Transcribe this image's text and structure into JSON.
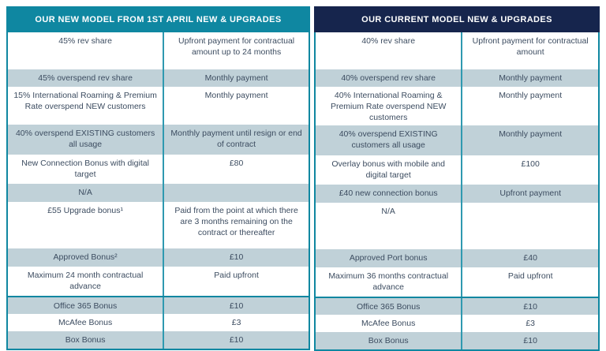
{
  "colors": {
    "teal_header": "#0F87A1",
    "navy_header": "#16254D",
    "row_alternate": "#C0D1D8",
    "cell_divider": "#2F99B0",
    "body_text": "#3C4C60"
  },
  "tables": [
    {
      "id": "new-model",
      "header": "OUR NEW MODEL FROM 1ST APRIL NEW & UPGRADES",
      "rows": [
        {
          "desc": "45% rev share",
          "payment": "Upfront payment for contractual amount up to 24 months"
        },
        {
          "desc": "45% overspend rev share",
          "payment": "Monthly payment"
        },
        {
          "desc": "15% International Roaming & Premium Rate overspend NEW customers",
          "payment": "Monthly payment"
        },
        {
          "desc": "40% overspend EXISTING customers all usage",
          "payment": "Monthly payment until resign or end of contract"
        },
        {
          "desc": "New Connection Bonus with digital target",
          "payment": "£80"
        },
        {
          "desc": "N/A",
          "payment": ""
        },
        {
          "desc": "£55 Upgrade bonus¹",
          "payment": "Paid from the point at which there are 3 months remaining on the contract or thereafter"
        },
        {
          "desc": "Approved Bonus²",
          "payment": "£10"
        },
        {
          "desc": "Maximum 24 month contractual advance",
          "payment": "Paid upfront"
        },
        {
          "desc": "Office 365 Bonus",
          "payment": "£10"
        },
        {
          "desc": "McAfee Bonus",
          "payment": "£3"
        },
        {
          "desc": "Box Bonus",
          "payment": "£10"
        }
      ]
    },
    {
      "id": "current-model",
      "header": "OUR CURRENT MODEL NEW & UPGRADES",
      "rows": [
        {
          "desc": "40% rev share",
          "payment": "Upfront payment for contractual amount"
        },
        {
          "desc": "40% overspend rev share",
          "payment": "Monthly payment"
        },
        {
          "desc": "40% International Roaming & Premium Rate overspend NEW customers",
          "payment": "Monthly payment"
        },
        {
          "desc": "40% overspend EXISTING customers all usage",
          "payment": "Monthly payment"
        },
        {
          "desc": "Overlay bonus with mobile and digital target",
          "payment": "£100"
        },
        {
          "desc": "£40 new connection bonus",
          "payment": "Upfront payment"
        },
        {
          "desc": "N/A",
          "payment": ""
        },
        {
          "desc": "Approved Port bonus",
          "payment": "£40"
        },
        {
          "desc": "Maximum 36 months contractual advance",
          "payment": "Paid upfront"
        },
        {
          "desc": "Office 365 Bonus",
          "payment": "£10"
        },
        {
          "desc": "McAfee Bonus",
          "payment": "£3"
        },
        {
          "desc": "Box Bonus",
          "payment": "£10"
        }
      ]
    }
  ]
}
